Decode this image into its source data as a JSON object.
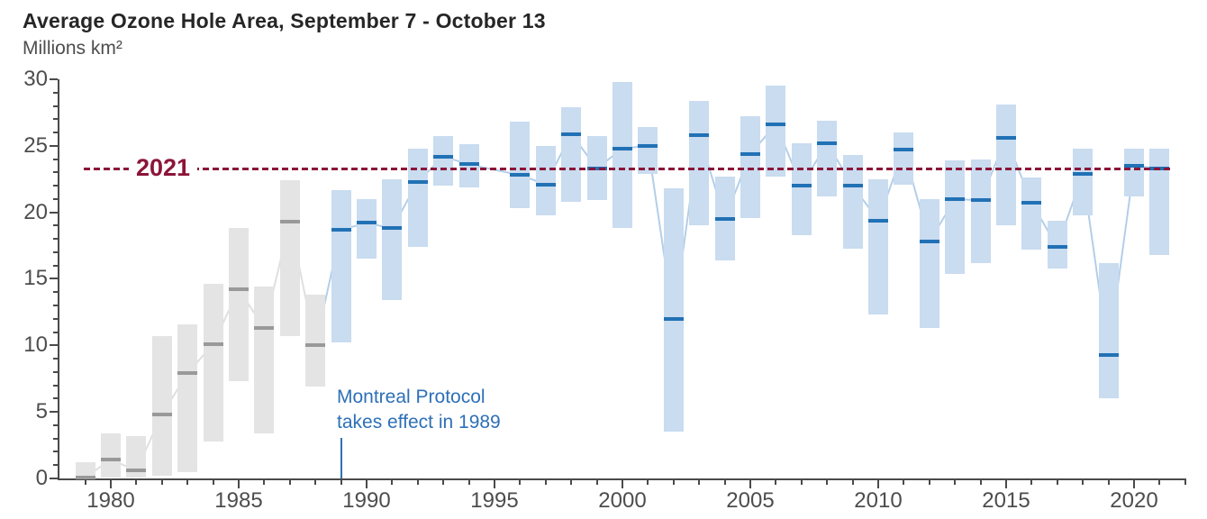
{
  "header": {
    "title": "Average Ozone Hole Area, September 7 - October 13",
    "unit_label": "Millions km²"
  },
  "colors": {
    "title_text": "#262626",
    "subtitle_text": "#4d4d4d",
    "axis": "#4a4a4a",
    "tick_label_text": "#4d4d4d",
    "pre_bar_fill": "#e4e4e4",
    "pre_mean_marker": "#999999",
    "pre_mean_line": "#d9d9d9",
    "post_bar_fill": "#c9dcf0",
    "post_mean_marker": "#2171b5",
    "post_mean_line": "#a6c6e4",
    "reference_maroon": "#8c1538",
    "annotation_blue": "#2d70b7"
  },
  "chart_data": {
    "type": "range-bar-with-mean",
    "title": "Average Ozone Hole Area, September 7 - October 13",
    "ylabel": "Millions km²",
    "ylim": [
      0,
      30
    ],
    "y_ticks_major": [
      0,
      5,
      10,
      15,
      20,
      25,
      30
    ],
    "y_minor_step": 1,
    "x_ticks_major": [
      1980,
      1985,
      1990,
      1995,
      2000,
      2005,
      2010,
      2015,
      2020
    ],
    "x_minor_years": [
      1979,
      2022
    ],
    "grid": "off",
    "legend": "none",
    "eras": {
      "pre_years": [
        1979,
        1988
      ],
      "post_years": [
        1989,
        2021
      ],
      "gap_year_no_data": 1995
    },
    "reference_line": {
      "label": "2021",
      "value": 23.3
    },
    "annotation": {
      "lines": [
        "Montreal Protocol",
        "takes effect in 1989"
      ],
      "year": 1989
    },
    "series": [
      {
        "year": 1979,
        "min": 0.0,
        "max": 1.2,
        "mean": 0.1
      },
      {
        "year": 1980,
        "min": 0.1,
        "max": 3.4,
        "mean": 1.4
      },
      {
        "year": 1981,
        "min": 0.1,
        "max": 3.2,
        "mean": 0.6
      },
      {
        "year": 1982,
        "min": 0.2,
        "max": 10.7,
        "mean": 4.8
      },
      {
        "year": 1983,
        "min": 0.5,
        "max": 11.6,
        "mean": 7.9
      },
      {
        "year": 1984,
        "min": 2.8,
        "max": 14.6,
        "mean": 10.1
      },
      {
        "year": 1985,
        "min": 7.3,
        "max": 18.8,
        "mean": 14.2
      },
      {
        "year": 1986,
        "min": 3.4,
        "max": 14.4,
        "mean": 11.3
      },
      {
        "year": 1987,
        "min": 10.7,
        "max": 22.4,
        "mean": 19.3
      },
      {
        "year": 1988,
        "min": 6.9,
        "max": 13.8,
        "mean": 10.0
      },
      {
        "year": 1989,
        "min": 10.2,
        "max": 21.7,
        "mean": 18.7
      },
      {
        "year": 1990,
        "min": 16.5,
        "max": 21.0,
        "mean": 19.2
      },
      {
        "year": 1991,
        "min": 13.4,
        "max": 22.5,
        "mean": 18.8
      },
      {
        "year": 1992,
        "min": 17.4,
        "max": 24.8,
        "mean": 22.3
      },
      {
        "year": 1993,
        "min": 22.0,
        "max": 25.7,
        "mean": 24.2
      },
      {
        "year": 1994,
        "min": 21.9,
        "max": 25.1,
        "mean": 23.6
      },
      {
        "year": 1995,
        "min": null,
        "max": null,
        "mean": null
      },
      {
        "year": 1996,
        "min": 20.3,
        "max": 26.8,
        "mean": 22.8
      },
      {
        "year": 1997,
        "min": 19.8,
        "max": 25.0,
        "mean": 22.1
      },
      {
        "year": 1998,
        "min": 20.8,
        "max": 27.9,
        "mean": 25.9
      },
      {
        "year": 1999,
        "min": 20.9,
        "max": 25.7,
        "mean": 23.3
      },
      {
        "year": 2000,
        "min": 18.8,
        "max": 29.8,
        "mean": 24.8
      },
      {
        "year": 2001,
        "min": 22.9,
        "max": 26.4,
        "mean": 25.0
      },
      {
        "year": 2002,
        "min": 3.5,
        "max": 21.8,
        "mean": 12.0
      },
      {
        "year": 2003,
        "min": 19.0,
        "max": 28.4,
        "mean": 25.8
      },
      {
        "year": 2004,
        "min": 16.4,
        "max": 22.7,
        "mean": 19.5
      },
      {
        "year": 2005,
        "min": 19.6,
        "max": 27.2,
        "mean": 24.4
      },
      {
        "year": 2006,
        "min": 22.7,
        "max": 29.5,
        "mean": 26.6
      },
      {
        "year": 2007,
        "min": 18.3,
        "max": 25.2,
        "mean": 22.0
      },
      {
        "year": 2008,
        "min": 21.2,
        "max": 26.9,
        "mean": 25.2
      },
      {
        "year": 2009,
        "min": 17.3,
        "max": 24.3,
        "mean": 22.0
      },
      {
        "year": 2010,
        "min": 12.3,
        "max": 22.5,
        "mean": 19.4
      },
      {
        "year": 2011,
        "min": 22.1,
        "max": 26.0,
        "mean": 24.7
      },
      {
        "year": 2012,
        "min": 11.3,
        "max": 21.0,
        "mean": 17.8
      },
      {
        "year": 2013,
        "min": 15.4,
        "max": 23.9,
        "mean": 21.0
      },
      {
        "year": 2014,
        "min": 16.2,
        "max": 24.0,
        "mean": 20.9
      },
      {
        "year": 2015,
        "min": 19.0,
        "max": 28.1,
        "mean": 25.6
      },
      {
        "year": 2016,
        "min": 17.2,
        "max": 22.6,
        "mean": 20.7
      },
      {
        "year": 2017,
        "min": 15.8,
        "max": 19.4,
        "mean": 17.4
      },
      {
        "year": 2018,
        "min": 19.8,
        "max": 24.8,
        "mean": 22.9
      },
      {
        "year": 2019,
        "min": 6.0,
        "max": 16.2,
        "mean": 9.3
      },
      {
        "year": 2020,
        "min": 21.2,
        "max": 24.8,
        "mean": 23.5
      },
      {
        "year": 2021,
        "min": 16.8,
        "max": 24.8,
        "mean": 23.3
      }
    ]
  }
}
